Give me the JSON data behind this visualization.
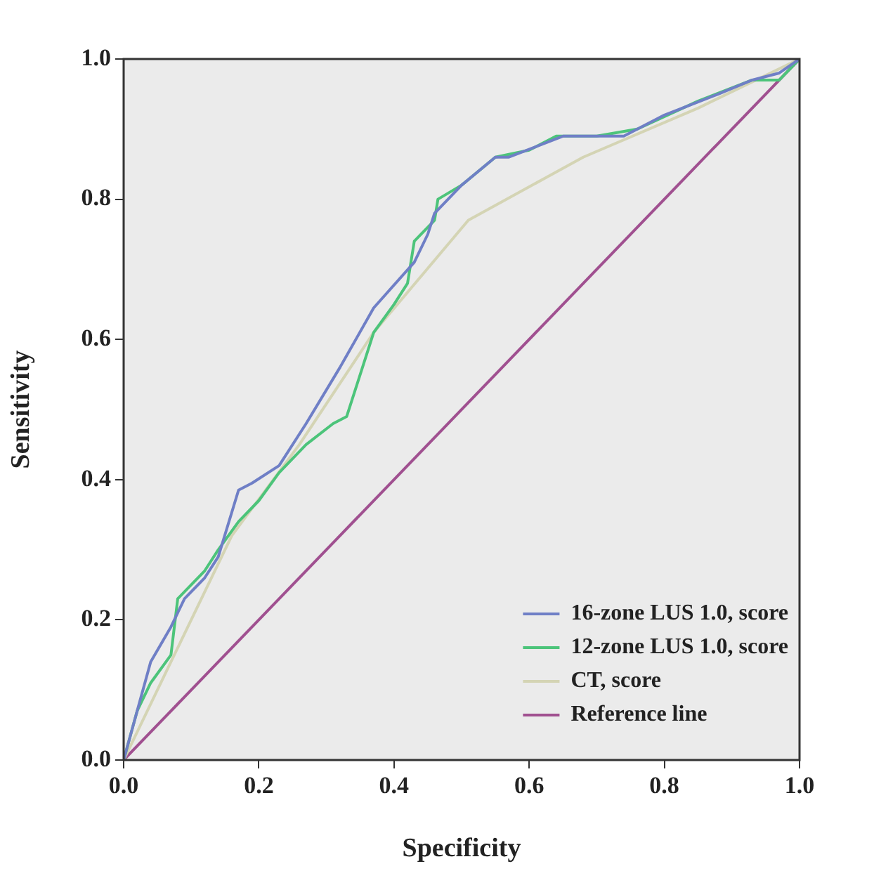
{
  "chart_data": {
    "type": "line",
    "xlabel": "Specificity",
    "ylabel": "Sensitivity",
    "xlim": [
      0,
      1
    ],
    "ylim": [
      0,
      1
    ],
    "xticks": [
      {
        "value": 0,
        "label": "0.0"
      },
      {
        "value": 0.2,
        "label": "0.2"
      },
      {
        "value": 0.4,
        "label": "0.4"
      },
      {
        "value": 0.6,
        "label": "0.6"
      },
      {
        "value": 0.8,
        "label": "0.8"
      },
      {
        "value": 1,
        "label": "1.0"
      }
    ],
    "yticks": [
      {
        "value": 0,
        "label": "0.0"
      },
      {
        "value": 0.2,
        "label": "0.2"
      },
      {
        "value": 0.4,
        "label": "0.4"
      },
      {
        "value": 0.6,
        "label": "0.6"
      },
      {
        "value": 0.8,
        "label": "0.8"
      },
      {
        "value": 1,
        "label": "1.0"
      }
    ],
    "grid": false,
    "legend": "bottom right",
    "marker": "none",
    "line_style": "solid",
    "series": [
      {
        "name": "16-zone LUS 1.0, score",
        "color": "#6f7fc6",
        "x": [
          0,
          0.02,
          0.04,
          0.07,
          0.09,
          0.12,
          0.14,
          0.17,
          0.19,
          0.23,
          0.27,
          0.32,
          0.37,
          0.43,
          0.45,
          0.46,
          0.5,
          0.55,
          0.57,
          0.65,
          0.7,
          0.74,
          0.8,
          0.88,
          0.93,
          0.97,
          1
        ],
        "values": [
          0,
          0.07,
          0.14,
          0.19,
          0.23,
          0.26,
          0.29,
          0.385,
          0.395,
          0.42,
          0.48,
          0.56,
          0.645,
          0.71,
          0.75,
          0.78,
          0.82,
          0.86,
          0.86,
          0.89,
          0.89,
          0.89,
          0.92,
          0.95,
          0.97,
          0.98,
          1
        ]
      },
      {
        "name": "12-zone LUS 1.0, score",
        "color": "#4cc47a",
        "x": [
          0,
          0.02,
          0.04,
          0.07,
          0.08,
          0.12,
          0.14,
          0.17,
          0.2,
          0.23,
          0.27,
          0.31,
          0.33,
          0.37,
          0.4,
          0.42,
          0.43,
          0.46,
          0.465,
          0.5,
          0.55,
          0.6,
          0.64,
          0.7,
          0.76,
          0.85,
          0.93,
          0.97,
          1
        ],
        "values": [
          0,
          0.07,
          0.11,
          0.15,
          0.23,
          0.27,
          0.3,
          0.34,
          0.37,
          0.41,
          0.45,
          0.48,
          0.49,
          0.61,
          0.65,
          0.68,
          0.74,
          0.77,
          0.8,
          0.82,
          0.86,
          0.87,
          0.89,
          0.89,
          0.9,
          0.94,
          0.97,
          0.97,
          1
        ]
      },
      {
        "name": "CT, score",
        "color": "#d4d4b4",
        "x": [
          0,
          0.06,
          0.16,
          0.26,
          0.37,
          0.51,
          0.68,
          0.85,
          1
        ],
        "values": [
          0,
          0.12,
          0.32,
          0.45,
          0.61,
          0.77,
          0.86,
          0.93,
          1
        ]
      },
      {
        "name": "Reference line",
        "color": "#a05090",
        "x": [
          0,
          1
        ],
        "values": [
          0,
          1
        ]
      }
    ]
  }
}
